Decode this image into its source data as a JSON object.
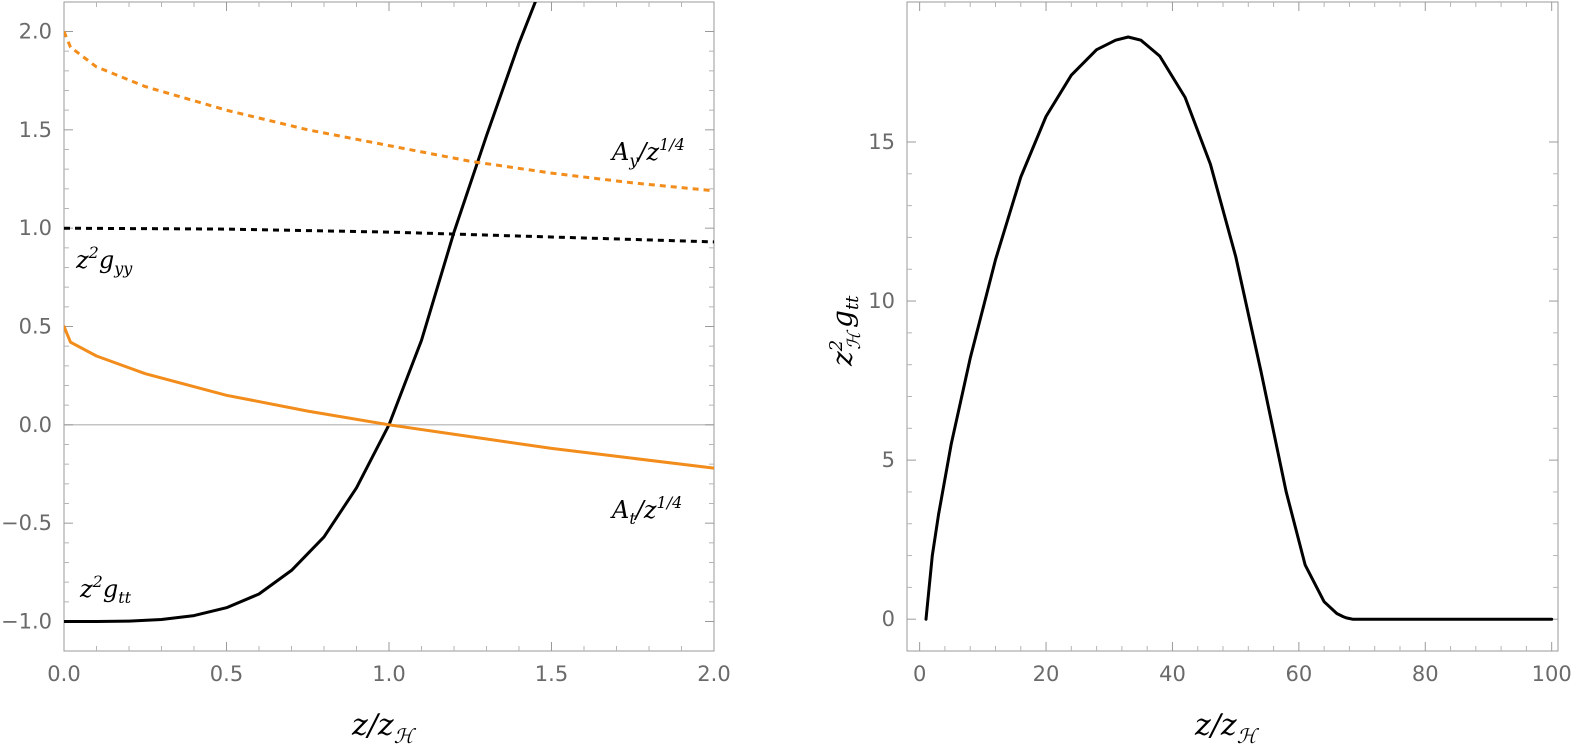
{
  "colors": {
    "black": "#000000",
    "orange": "#F28C1A",
    "frame": "#9a9a9a",
    "tick_text": "#6a6a6a",
    "zero_line": "#b0b0b0"
  },
  "chart_data": [
    {
      "type": "line",
      "xlabel": {
        "base": "z/z",
        "sub": "ℋ"
      },
      "ylabel": "",
      "xlim": [
        0,
        2.0
      ],
      "ylim": [
        -1.15,
        2.15
      ],
      "x_ticks": [
        "0.0",
        "0.5",
        "1.0",
        "1.5",
        "2.0"
      ],
      "y_ticks": [
        "−1.0",
        "−0.5",
        "0.0",
        "0.5",
        "1.0",
        "1.5",
        "2.0"
      ],
      "zero_line": true,
      "series": [
        {
          "name": "z²g_tt",
          "color": "#000000",
          "dash": "solid",
          "x": [
            0,
            0.1,
            0.2,
            0.3,
            0.4,
            0.5,
            0.6,
            0.7,
            0.8,
            0.9,
            1.0,
            1.1,
            1.2,
            1.3,
            1.4,
            1.45
          ],
          "y": [
            -1.0,
            -1.0,
            -0.998,
            -0.99,
            -0.97,
            -0.93,
            -0.86,
            -0.74,
            -0.57,
            -0.32,
            0.0,
            0.43,
            0.98,
            1.47,
            1.94,
            2.15
          ]
        },
        {
          "name": "A_y/z^{1/4}",
          "color": "#F28C1A",
          "dash": "dashed",
          "x": [
            0,
            0.02,
            0.1,
            0.25,
            0.5,
            0.75,
            1.0,
            1.25,
            1.5,
            1.75,
            2.0
          ],
          "y": [
            2.0,
            1.92,
            1.82,
            1.72,
            1.6,
            1.5,
            1.42,
            1.34,
            1.28,
            1.23,
            1.19
          ]
        },
        {
          "name": "z²g_yy",
          "color": "#000000",
          "dash": "dashed",
          "x": [
            0,
            0.5,
            1.0,
            1.5,
            2.0
          ],
          "y": [
            1.0,
            0.995,
            0.98,
            0.955,
            0.93
          ]
        },
        {
          "name": "A_t/z^{1/4}",
          "color": "#F28C1A",
          "dash": "solid",
          "x": [
            0,
            0.02,
            0.1,
            0.25,
            0.5,
            0.75,
            1.0,
            1.25,
            1.5,
            1.75,
            2.0
          ],
          "y": [
            0.5,
            0.42,
            0.35,
            0.26,
            0.15,
            0.07,
            0.0,
            -0.06,
            -0.12,
            -0.17,
            -0.22
          ]
        }
      ],
      "annotations": [
        {
          "text": "z",
          "sup": "2",
          "sub": "tt",
          "x": 0.01,
          "y": -0.88
        },
        {
          "text": "z",
          "sup": "2",
          "sub": "yy",
          "x": 0.0,
          "y": 0.82
        },
        {
          "text": "A",
          "sub": "y",
          "tail": "/z",
          "sup": "1/4",
          "x": 1.72,
          "y": 1.46
        },
        {
          "text": "A",
          "sub": "t",
          "tail": "/z",
          "sup": "1/4",
          "x": 1.72,
          "y": -0.5
        }
      ]
    },
    {
      "type": "line",
      "xlabel": {
        "base": "z/z",
        "sub": "ℋ"
      },
      "ylabel": {
        "base": "z",
        "sup": "2",
        "sub": "ℋ",
        "tail": "g",
        "tail_sub": "tt"
      },
      "xlim": [
        -2,
        101
      ],
      "ylim": [
        -1,
        19.4
      ],
      "x_ticks": [
        "0",
        "20",
        "40",
        "60",
        "80",
        "100"
      ],
      "y_ticks": [
        "0",
        "5",
        "10",
        "15"
      ],
      "zero_line": false,
      "series": [
        {
          "name": "",
          "color": "#000000",
          "dash": "solid",
          "x": [
            1,
            2,
            3,
            5,
            8,
            12,
            16,
            20,
            24,
            28,
            31,
            33,
            35,
            38,
            42,
            46,
            50,
            54,
            58,
            61,
            64,
            66,
            67,
            67.5,
            68,
            68.5,
            69,
            70,
            80,
            90,
            100
          ],
          "y": [
            0,
            2.0,
            3.3,
            5.5,
            8.2,
            11.3,
            13.9,
            15.8,
            17.1,
            17.9,
            18.2,
            18.3,
            18.2,
            17.7,
            16.4,
            14.3,
            11.4,
            7.8,
            4.0,
            1.7,
            0.55,
            0.18,
            0.08,
            0.04,
            0.02,
            0.0,
            0.0,
            0.0,
            0.0,
            0.0,
            0.0
          ]
        }
      ]
    }
  ]
}
